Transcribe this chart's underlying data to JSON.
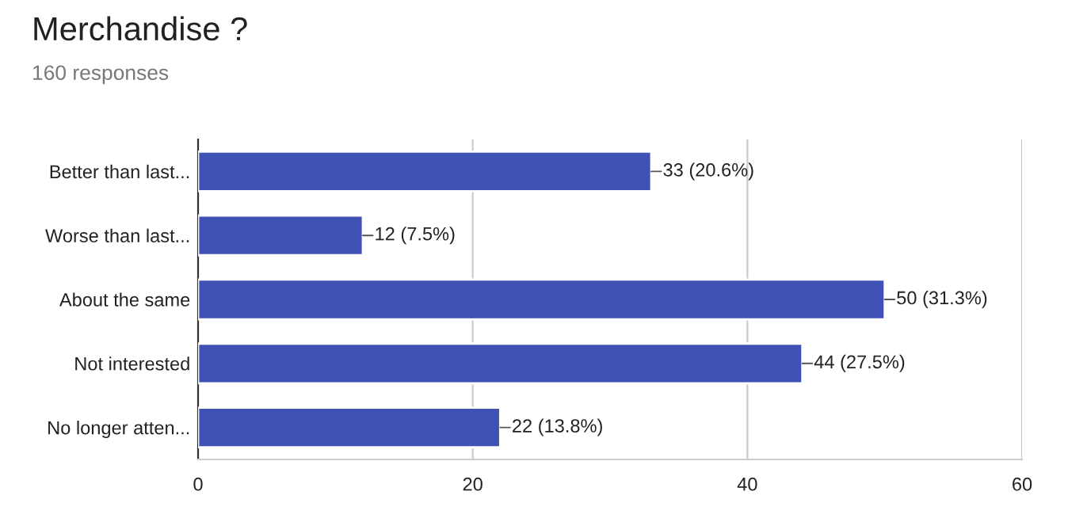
{
  "chart_data": {
    "type": "bar",
    "orientation": "horizontal",
    "title": "Merchandise ?",
    "subtitle": "160 responses",
    "categories": [
      "Better than last...",
      "Worse than last...",
      "About the same",
      "Not interested",
      "No longer atten..."
    ],
    "values": [
      33,
      12,
      50,
      44,
      22
    ],
    "value_labels": [
      "33 (20.6%)",
      "12 (7.5%)",
      "50 (31.3%)",
      "44 (27.5%)",
      "22 (13.8%)"
    ],
    "color": "#3f51b5",
    "xlim": [
      0,
      60
    ],
    "xticks": [
      0,
      20,
      40,
      60
    ],
    "grid": "x"
  }
}
